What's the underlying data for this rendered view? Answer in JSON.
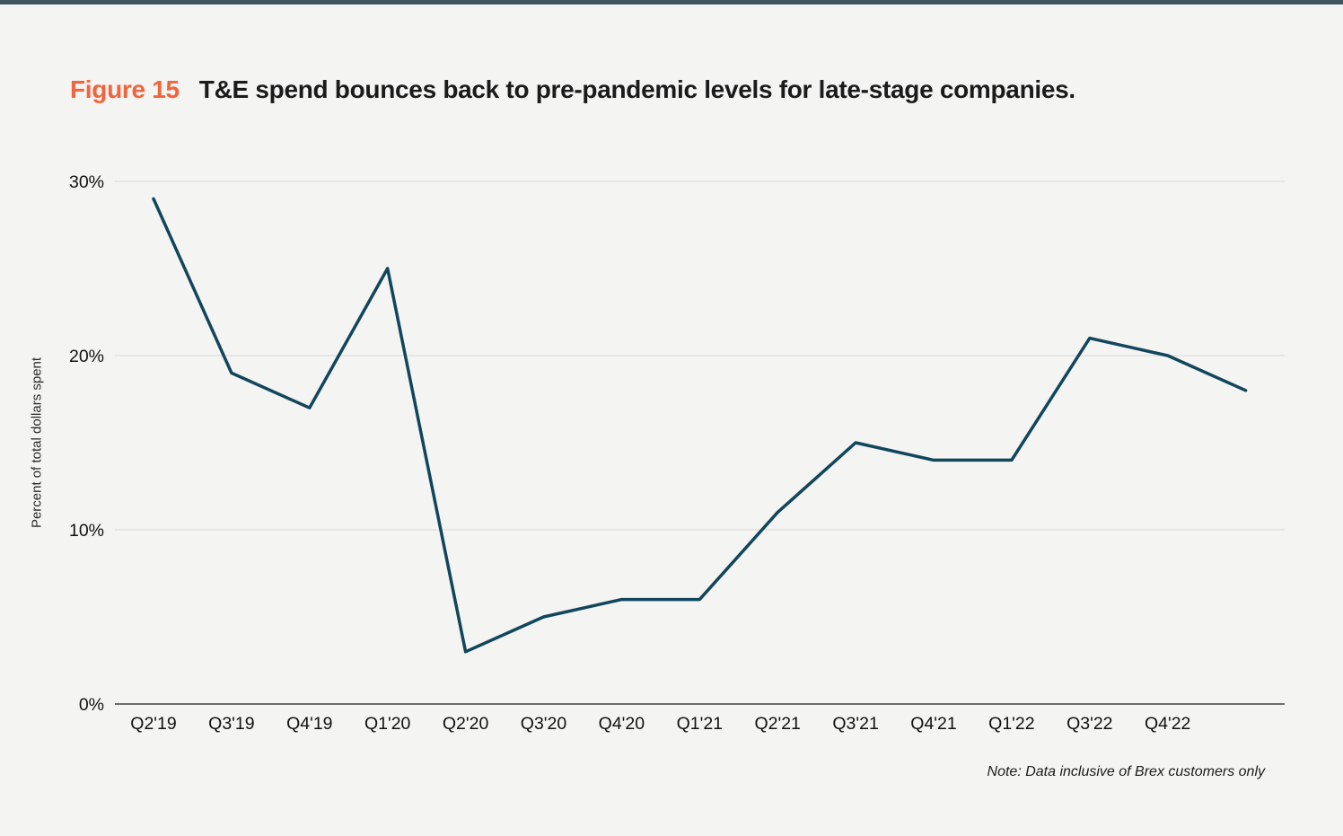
{
  "page": {
    "background_color": "#f4f4f2",
    "top_bar_color": "#3f565e"
  },
  "header": {
    "figure_label": "Figure 15",
    "figure_label_color": "#f2653c",
    "title": "T&E spend bounces back to pre-pandemic levels for late-stage companies.",
    "title_color": "#1b1b1b"
  },
  "chart_data": {
    "type": "line",
    "title": "T&E spend bounces back to pre-pandemic levels for late-stage companies.",
    "ylabel": "Percent of total dollars spent",
    "xlabel": "",
    "categories": [
      "Q2'19",
      "Q3'19",
      "Q4'19",
      "Q1'20",
      "Q2'20",
      "Q3'20",
      "Q4'20",
      "Q1'21",
      "Q2'21",
      "Q3'21",
      "Q4'21",
      "Q1'22",
      "Q3'22",
      "Q4'22",
      ""
    ],
    "values": [
      29,
      19,
      17,
      25,
      3,
      5,
      6,
      6,
      11,
      15,
      14,
      14,
      21,
      20,
      18
    ],
    "unit": "%",
    "ylim": [
      0,
      30
    ],
    "yticks": [
      0,
      10,
      20,
      30
    ],
    "ytick_labels": [
      "0%",
      "10%",
      "20%",
      "30%"
    ],
    "grid": "horizontal",
    "gridline_color": "#d7d7d5",
    "axis_line_color": "#6e6e6e",
    "legend": "none",
    "line_color": "#11465c",
    "note": "Note: Data inclusive of Brex customers only"
  }
}
